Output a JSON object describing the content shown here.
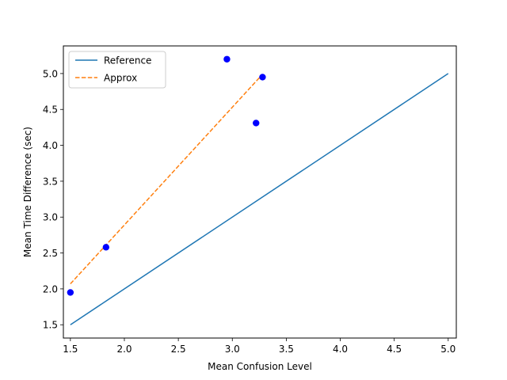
{
  "chart_data": {
    "type": "line",
    "title": "",
    "xlabel": "Mean Confusion Level",
    "ylabel": "Mean Time Difference (sec)",
    "xlim": [
      1.435,
      5.075
    ],
    "ylim": [
      1.315,
      5.385
    ],
    "xticks": [
      1.5,
      2.0,
      2.5,
      3.0,
      3.5,
      4.0,
      4.5,
      5.0
    ],
    "yticks": [
      1.5,
      2.0,
      2.5,
      3.0,
      3.5,
      4.0,
      4.5,
      5.0
    ],
    "xtick_labels": [
      "1.5",
      "2.0",
      "2.5",
      "3.0",
      "3.5",
      "4.0",
      "4.5",
      "5.0"
    ],
    "ytick_labels": [
      "1.5",
      "2.0",
      "2.5",
      "3.0",
      "3.5",
      "4.0",
      "4.5",
      "5.0"
    ],
    "grid": false,
    "legend_position": "upper-left",
    "series": [
      {
        "name": "Reference",
        "kind": "line",
        "style": "solid",
        "color": "#1f77b4",
        "x": [
          1.5,
          5.0
        ],
        "y": [
          1.5,
          5.0
        ]
      },
      {
        "name": "Approx",
        "kind": "line",
        "style": "dashed",
        "color": "#ff7f0e",
        "x": [
          1.5,
          3.28
        ],
        "y": [
          2.07,
          4.99
        ]
      },
      {
        "kind": "scatter",
        "color": "#0000ff",
        "x": [
          1.5,
          1.83,
          2.95,
          3.22,
          3.28
        ],
        "y": [
          1.95,
          2.58,
          5.2,
          4.31,
          4.95
        ]
      }
    ]
  }
}
